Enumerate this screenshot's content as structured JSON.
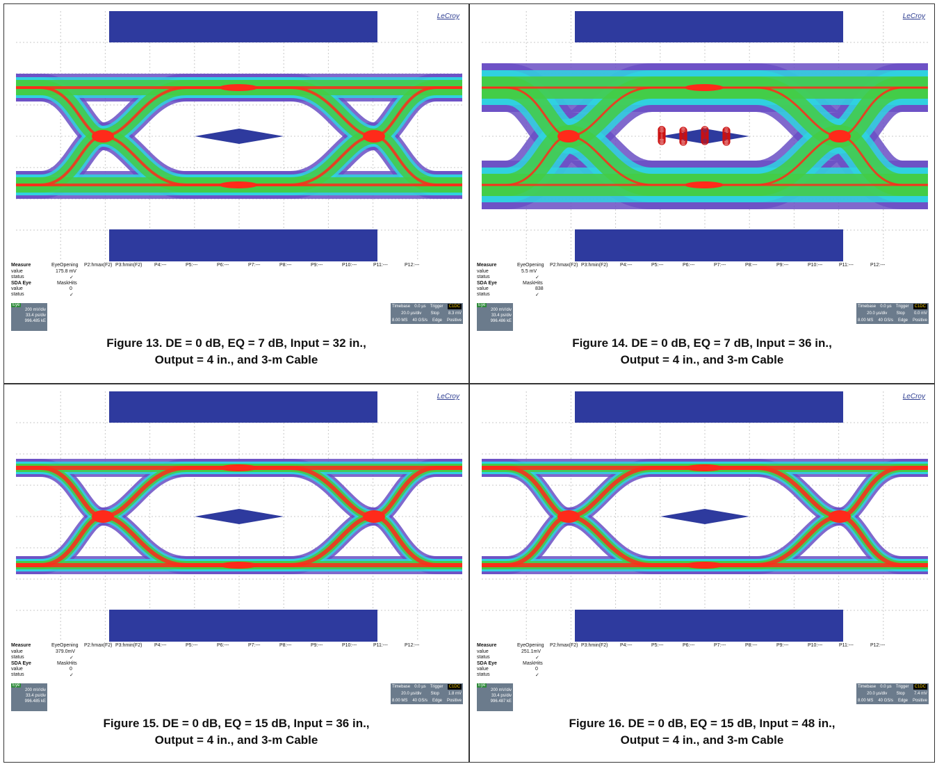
{
  "figures": [
    {
      "logo": "LeCroy",
      "caption_line1": "Figure 13. DE = 0 dB, EQ = 7 dB, Input = 32 in.,",
      "caption_line2": "Output = 4 in., and 3-m Cable",
      "measure": {
        "label": "Measure",
        "p1": "EyeOpening",
        "p2": "P2:hmax(F2)",
        "p3": "P3:hmin(F2)",
        "value_label": "value",
        "value": "175.8 mV",
        "status_label": "status",
        "check": "✓"
      },
      "sda": {
        "label": "SDA Eye",
        "p1": "MaskHits",
        "value_label": "value",
        "value": "0",
        "status_label": "status",
        "check": "✓"
      },
      "slots": [
        "P4:---",
        "P5:---",
        "P6:---",
        "P7:---",
        "P8:---",
        "P9:---",
        "P10:---",
        "P11:---",
        "P12:---"
      ],
      "chan": {
        "tag": "Eye",
        "vdiv": "200 mV/div",
        "tdiv": "33.4 ps/div",
        "count": "996.485 kE"
      },
      "timebase": {
        "label": "Timebase",
        "offset": "0.0 µs",
        "trigger": "Trigger",
        "trig_tag": "C1DC",
        "tdiv": "20.0 µs/div",
        "stop": "Stop",
        "level": "8.3 mV",
        "samples": "8.00 MS",
        "rate": "40 GS/s",
        "edge": "Edge",
        "slope": "Positive"
      },
      "eye": {
        "style": "warm",
        "has_mask_hits": false
      }
    },
    {
      "logo": "LeCroy",
      "caption_line1": "Figure 14. DE = 0 dB, EQ = 7 dB, Input = 36 in.,",
      "caption_line2": "Output = 4 in., and 3-m Cable",
      "measure": {
        "label": "Measure",
        "p1": "EyeOpening",
        "p2": "P2:hmax(F2)",
        "p3": "P3:hmin(F2)",
        "value_label": "value",
        "value": "5.5 mV",
        "status_label": "status",
        "check": "✓"
      },
      "sda": {
        "label": "SDA Eye",
        "p1": "MaskHits",
        "value_label": "value",
        "value": "838",
        "status_label": "status",
        "check": "✓"
      },
      "slots": [
        "P4:---",
        "P5:---",
        "P6:---",
        "P7:---",
        "P8:---",
        "P9:---",
        "P10:---",
        "P11:---",
        "P12:---"
      ],
      "chan": {
        "tag": "Eye",
        "vdiv": "200 mV/div",
        "tdiv": "33.4 ps/div",
        "count": "996.486 kE"
      },
      "timebase": {
        "label": "Timebase",
        "offset": "0.0 µs",
        "trigger": "Trigger",
        "trig_tag": "C1DC",
        "tdiv": "20.0 µs/div",
        "stop": "Stop",
        "level": "0.0 mV",
        "samples": "8.00 MS",
        "rate": "40 GS/s",
        "edge": "Edge",
        "slope": "Positive"
      },
      "eye": {
        "style": "closed",
        "has_mask_hits": true
      }
    },
    {
      "logo": "LeCroy",
      "caption_line1": "Figure 15. DE = 0 dB, EQ = 15 dB, Input = 36 in.,",
      "caption_line2": "Output = 4 in., and 3-m Cable",
      "measure": {
        "label": "Measure",
        "p1": "EyeOpening",
        "p2": "P2:hmax(F2)",
        "p3": "P3:hmin(F2)",
        "value_label": "value",
        "value": "379.0mV",
        "status_label": "status",
        "check": "✓"
      },
      "sda": {
        "label": "SDA Eye",
        "p1": "MaskHits",
        "value_label": "value",
        "value": "0",
        "status_label": "status",
        "check": "✓"
      },
      "slots": [
        "P4:---",
        "P5:---",
        "P6:---",
        "P7:---",
        "P8:---",
        "P9:---",
        "P10:---",
        "P11:---",
        "P12:---"
      ],
      "chan": {
        "tag": "Eye",
        "vdiv": "200 mV/div",
        "tdiv": "33.4 ps/div",
        "count": "996.485 kE"
      },
      "timebase": {
        "label": "Timebase",
        "offset": "0.0 µs",
        "trigger": "Trigger",
        "trig_tag": "C1DC",
        "tdiv": "20.0 µs/div",
        "stop": "Stop",
        "level": "1.8 mV",
        "samples": "8.00 MS",
        "rate": "40 GS/s",
        "edge": "Edge",
        "slope": "Positive"
      },
      "eye": {
        "style": "hot",
        "has_mask_hits": false
      }
    },
    {
      "logo": "LeCroy",
      "caption_line1": "Figure 16. DE = 0 dB, EQ = 15 dB, Input = 48 in.,",
      "caption_line2": "Output = 4 in., and 3-m Cable",
      "measure": {
        "label": "Measure",
        "p1": "EyeOpening",
        "p2": "P2:hmax(F2)",
        "p3": "P3:hmin(F2)",
        "value_label": "value",
        "value": "251.1mV",
        "status_label": "status",
        "check": "✓"
      },
      "sda": {
        "label": "SDA Eye",
        "p1": "MaskHits",
        "value_label": "value",
        "value": "0",
        "status_label": "status",
        "check": "✓"
      },
      "slots": [
        "P4:---",
        "P5:---",
        "P6:---",
        "P7:---",
        "P8:---",
        "P9:---",
        "P10:---",
        "P11:---",
        "P12:---"
      ],
      "chan": {
        "tag": "Eye",
        "vdiv": "200 mV/div",
        "tdiv": "33.4 ps/div",
        "count": "996.487 kE"
      },
      "timebase": {
        "label": "Timebase",
        "offset": "0.0 µs",
        "trigger": "Trigger",
        "trig_tag": "C1DC",
        "tdiv": "20.0 µs/div",
        "stop": "Stop",
        "level": "7.4 mV",
        "samples": "8.00 MS",
        "rate": "40 GS/s",
        "edge": "Edge",
        "slope": "Positive"
      },
      "eye": {
        "style": "hot",
        "has_mask_hits": false
      }
    }
  ],
  "colors": {
    "mask": "#2e3a9e",
    "red": "#ff2a1a",
    "green": "#44cc44",
    "cyan": "#2fd4e0",
    "purple": "#6a4fc4",
    "grid": "#c8c8c8"
  }
}
